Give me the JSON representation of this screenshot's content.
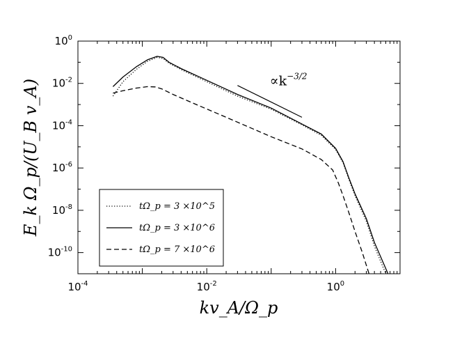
{
  "chart_data": {
    "type": "line",
    "title": "",
    "xlabel": "kv_A/Ω_p",
    "ylabel": "E_k Ω_p/(U_B v_A)",
    "xscale": "log",
    "yscale": "log",
    "xlim": [
      0.0001,
      10
    ],
    "ylim": [
      1e-11,
      1
    ],
    "x_ticks": [
      {
        "value": 0.0001,
        "base": "10",
        "exp": "-4"
      },
      {
        "value": 0.01,
        "base": "10",
        "exp": "-2"
      },
      {
        "value": 1,
        "base": "10",
        "exp": "0"
      }
    ],
    "y_ticks": [
      {
        "value": 1,
        "base": "10",
        "exp": "0"
      },
      {
        "value": 0.01,
        "base": "10",
        "exp": "-2"
      },
      {
        "value": 0.0001,
        "base": "10",
        "exp": "-4"
      },
      {
        "value": 1e-06,
        "base": "10",
        "exp": "-6"
      },
      {
        "value": 1e-08,
        "base": "10",
        "exp": "-8"
      },
      {
        "value": 1e-10,
        "base": "10",
        "exp": "-10"
      }
    ],
    "grid": false,
    "legend_position": "bottom-left",
    "series": [
      {
        "name": "tΩ_p = 3 ×10^5",
        "style": "dotted",
        "color": "#000000",
        "points": [
          [
            0.00035,
            0.0025
          ],
          [
            0.0005,
            0.012
          ],
          [
            0.0008,
            0.045
          ],
          [
            0.0012,
            0.11
          ],
          [
            0.0017,
            0.17
          ],
          [
            0.0021,
            0.15
          ],
          [
            0.0026,
            0.09
          ],
          [
            0.004,
            0.045
          ],
          [
            0.01,
            0.012
          ],
          [
            0.03,
            0.0025
          ],
          [
            0.1,
            0.0006
          ],
          [
            0.3,
            0.00011
          ],
          [
            0.6,
            3.5e-05
          ],
          [
            1,
            7.5e-06
          ],
          [
            1.3,
            1.8e-06
          ],
          [
            1.6,
            3e-07
          ],
          [
            2,
            5e-08
          ],
          [
            3,
            3e-09
          ],
          [
            4,
            2e-10
          ],
          [
            6,
            1e-11
          ]
        ]
      },
      {
        "name": "tΩ_p = 3 ×10^6",
        "style": "solid",
        "color": "#000000",
        "points": [
          [
            0.00035,
            0.007
          ],
          [
            0.0005,
            0.02
          ],
          [
            0.0008,
            0.06
          ],
          [
            0.0012,
            0.13
          ],
          [
            0.0017,
            0.19
          ],
          [
            0.0021,
            0.17
          ],
          [
            0.0026,
            0.1
          ],
          [
            0.004,
            0.05
          ],
          [
            0.01,
            0.014
          ],
          [
            0.03,
            0.003
          ],
          [
            0.1,
            0.00068
          ],
          [
            0.3,
            0.00012
          ],
          [
            0.6,
            4e-05
          ],
          [
            1,
            8.5e-06
          ],
          [
            1.3,
            2e-06
          ],
          [
            1.6,
            3.5e-07
          ],
          [
            2,
            6e-08
          ],
          [
            3,
            4e-09
          ],
          [
            4,
            3e-10
          ],
          [
            6.5,
            1e-11
          ]
        ]
      },
      {
        "name": "tΩ_p = 7 ×10^6",
        "style": "dashed",
        "color": "#000000",
        "points": [
          [
            0.00035,
            0.0035
          ],
          [
            0.0005,
            0.0045
          ],
          [
            0.0008,
            0.006
          ],
          [
            0.0012,
            0.007
          ],
          [
            0.0016,
            0.0068
          ],
          [
            0.002,
            0.0055
          ],
          [
            0.003,
            0.003
          ],
          [
            0.006,
            0.0012
          ],
          [
            0.02,
            0.00025
          ],
          [
            0.1,
            3e-05
          ],
          [
            0.3,
            8e-06
          ],
          [
            0.6,
            2.5e-06
          ],
          [
            0.9,
            8e-07
          ],
          [
            1.1,
            2e-07
          ],
          [
            1.3,
            5e-08
          ],
          [
            1.6,
            8e-09
          ],
          [
            2,
            1e-09
          ],
          [
            2.6,
            1e-10
          ],
          [
            3.3,
            1e-11
          ]
        ]
      }
    ],
    "reference_line": {
      "points": [
        [
          0.03,
          0.008
        ],
        [
          0.3,
          0.00025
        ]
      ],
      "label_prefix": "∝k",
      "label_exp": "−3/2",
      "label_at": [
        0.1,
        0.008
      ]
    }
  }
}
